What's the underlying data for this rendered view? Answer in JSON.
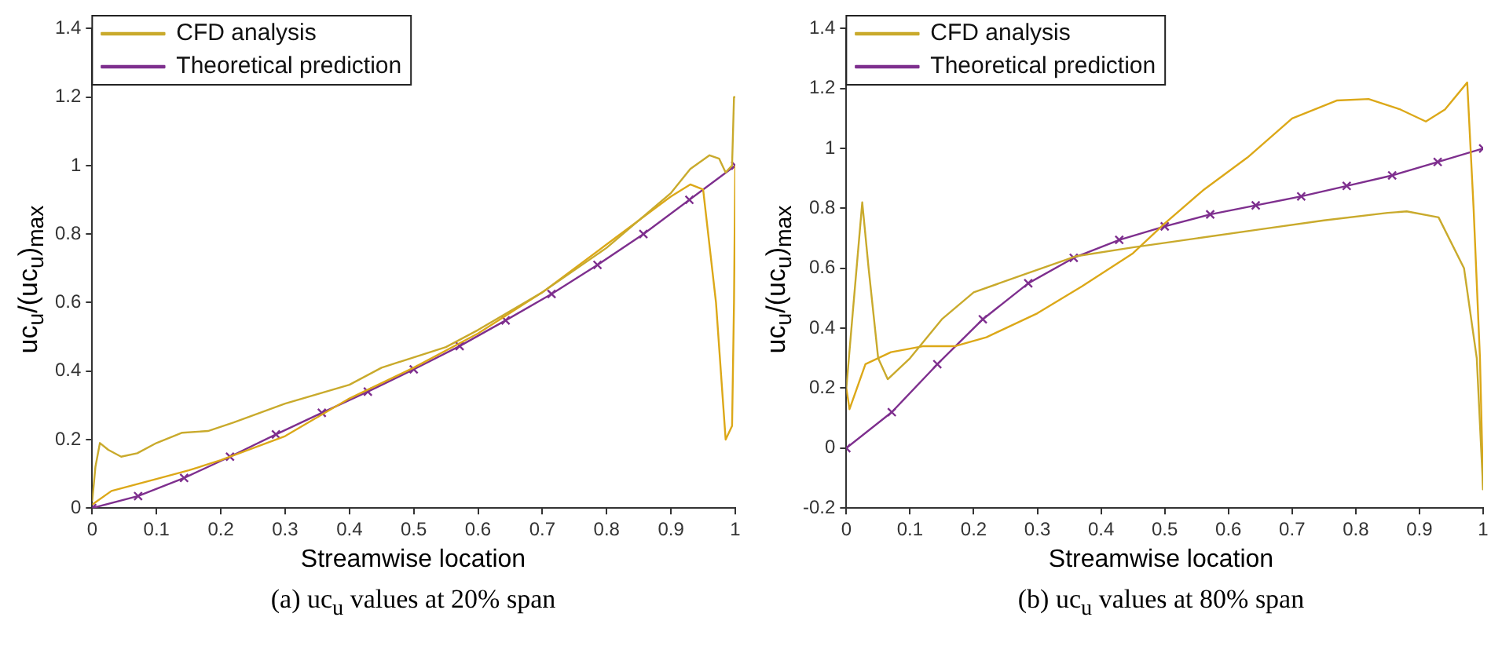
{
  "chart_data": [
    {
      "type": "line",
      "xlabel": "Streamwise location",
      "ylabel": "uc$_{u}$/(uc$_{u}$)$_{max}$",
      "annotations": [
        "(a) uc$_{u}$ values at 20% span"
      ],
      "xlim": [
        0,
        1
      ],
      "ylim": [
        0,
        1.4
      ],
      "xticks": [
        0,
        0.1,
        0.2,
        0.3,
        0.4,
        0.5,
        0.6,
        0.7,
        0.8,
        0.9,
        1
      ],
      "yticks": [
        0,
        0.2,
        0.4,
        0.6,
        0.8,
        1,
        1.2,
        1.4
      ],
      "grid": false,
      "legend": "top left",
      "line_style": "solid",
      "series": [
        {
          "name": "CFD analysis",
          "color": "#c9aa2c",
          "marker": "none",
          "x": [
            0,
            0.005,
            0.012,
            0.025,
            0.045,
            0.07,
            0.1,
            0.14,
            0.18,
            0.22,
            0.3,
            0.4,
            0.45,
            0.55,
            0.6,
            0.7,
            0.8,
            0.9,
            0.93,
            0.96,
            0.975,
            0.985,
            0.995,
            0.998,
            1
          ],
          "values": [
            0.02,
            0.12,
            0.19,
            0.17,
            0.15,
            0.16,
            0.19,
            0.22,
            0.225,
            0.25,
            0.305,
            0.36,
            0.41,
            0.47,
            0.52,
            0.63,
            0.76,
            0.92,
            0.99,
            1.03,
            1.02,
            0.98,
            1.0,
            1.2,
            1.2
          ]
        },
        {
          "color": "#dca818",
          "marker": "none",
          "x": [
            0,
            0.03,
            0.1,
            0.15,
            0.2,
            0.3,
            0.4,
            0.5,
            0.6,
            0.7,
            0.8,
            0.9,
            0.93,
            0.95,
            0.97,
            0.985,
            0.995,
            0.998,
            1
          ],
          "values": [
            0.01,
            0.05,
            0.085,
            0.11,
            0.14,
            0.21,
            0.32,
            0.41,
            0.51,
            0.63,
            0.77,
            0.91,
            0.945,
            0.93,
            0.6,
            0.2,
            0.24,
            0.6,
            1.0
          ]
        },
        {
          "name": "Theoretical prediction",
          "color": "#7e2f8e",
          "marker": "cross",
          "x": [
            0,
            0.0714,
            0.1429,
            0.2143,
            0.2857,
            0.3571,
            0.4286,
            0.5,
            0.5714,
            0.6429,
            0.7143,
            0.7857,
            0.8571,
            0.9286,
            1
          ],
          "values": [
            0,
            0.035,
            0.088,
            0.15,
            0.215,
            0.278,
            0.34,
            0.405,
            0.473,
            0.548,
            0.625,
            0.71,
            0.8,
            0.9,
            1.0
          ]
        }
      ]
    },
    {
      "type": "line",
      "xlabel": "Streamwise location",
      "ylabel": "uc$_{u}$/(uc$_{u}$)$_{max}$",
      "annotations": [
        "(b) uc$_{u}$ values at 80% span"
      ],
      "xlim": [
        0,
        1
      ],
      "ylim": [
        -0.2,
        1.4
      ],
      "xticks": [
        0,
        0.1,
        0.2,
        0.3,
        0.4,
        0.5,
        0.6,
        0.7,
        0.8,
        0.9,
        1
      ],
      "yticks": [
        -0.2,
        0,
        0.2,
        0.4,
        0.6,
        0.8,
        1,
        1.2,
        1.4
      ],
      "grid": false,
      "legend": "top left",
      "line_style": "solid",
      "series": [
        {
          "name": "CFD analysis",
          "color": "#c9aa2c",
          "marker": "none",
          "x": [
            0,
            0.01,
            0.025,
            0.035,
            0.05,
            0.065,
            0.1,
            0.15,
            0.2,
            0.28,
            0.36,
            0.45,
            0.55,
            0.65,
            0.75,
            0.85,
            0.88,
            0.93,
            0.97,
            0.99,
            1
          ],
          "values": [
            0.2,
            0.45,
            0.82,
            0.6,
            0.3,
            0.23,
            0.3,
            0.43,
            0.52,
            0.58,
            0.64,
            0.67,
            0.7,
            0.73,
            0.76,
            0.785,
            0.79,
            0.77,
            0.6,
            0.3,
            -0.14
          ]
        },
        {
          "color": "#dca818",
          "marker": "none",
          "x": [
            0,
            0.005,
            0.03,
            0.07,
            0.12,
            0.17,
            0.22,
            0.3,
            0.37,
            0.45,
            0.5,
            0.56,
            0.63,
            0.7,
            0.77,
            0.82,
            0.87,
            0.91,
            0.94,
            0.975,
            0.985,
            0.995,
            1
          ],
          "values": [
            0.2,
            0.13,
            0.28,
            0.32,
            0.34,
            0.34,
            0.37,
            0.45,
            0.54,
            0.65,
            0.75,
            0.86,
            0.97,
            1.1,
            1.16,
            1.165,
            1.13,
            1.09,
            1.13,
            1.22,
            0.8,
            0.3,
            -0.14
          ]
        },
        {
          "name": "Theoretical prediction",
          "color": "#7e2f8e",
          "marker": "cross",
          "x": [
            0,
            0.0714,
            0.1429,
            0.2143,
            0.2857,
            0.3571,
            0.4286,
            0.5,
            0.5714,
            0.6429,
            0.7143,
            0.7857,
            0.8571,
            0.9286,
            1
          ],
          "values": [
            0,
            0.12,
            0.28,
            0.43,
            0.55,
            0.635,
            0.695,
            0.74,
            0.78,
            0.81,
            0.84,
            0.875,
            0.91,
            0.955,
            1.0
          ]
        }
      ]
    }
  ]
}
